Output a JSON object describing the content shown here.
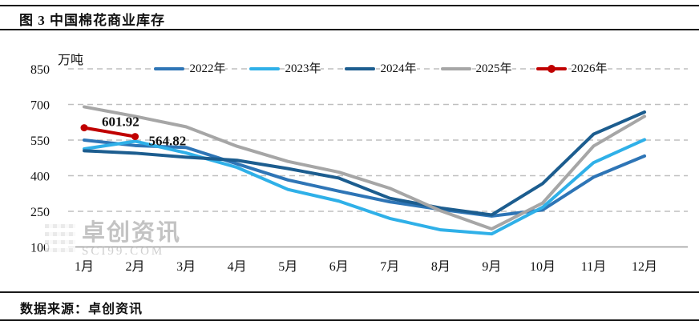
{
  "header": {
    "title": "图 3 中国棉花商业库存"
  },
  "footer": {
    "source_label": "数据来源：卓创资讯"
  },
  "watermark": {
    "brand": "卓创资讯",
    "site": "SCI99.COM",
    "icon": "qr-pixel-icon"
  },
  "chart_data": {
    "type": "line",
    "title": "中国棉花商业库存",
    "unit_label": "万吨",
    "xlabel": "",
    "ylabel": "万吨",
    "ylim": [
      100,
      850
    ],
    "y_ticks": [
      100,
      250,
      400,
      550,
      700,
      850
    ],
    "grid": "horizontal dashed",
    "legend_position": "top",
    "categories": [
      "1月",
      "2月",
      "3月",
      "4月",
      "5月",
      "6月",
      "7月",
      "8月",
      "9月",
      "10月",
      "11月",
      "12月"
    ],
    "series": [
      {
        "name": "2022年",
        "color": "#2E75B6",
        "values": [
          550,
          527,
          519,
          450,
          382,
          335,
          290,
          258,
          230,
          256,
          394,
          483
        ]
      },
      {
        "name": "2023年",
        "color": "#2FB0E8",
        "values": [
          513,
          545,
          496,
          435,
          342,
          293,
          220,
          172,
          155,
          267,
          455,
          552
        ]
      },
      {
        "name": "2024年",
        "color": "#1C5D8F",
        "values": [
          505,
          495,
          478,
          465,
          430,
          390,
          305,
          264,
          235,
          367,
          575,
          668
        ]
      },
      {
        "name": "2025年",
        "color": "#A6A6A6",
        "values": [
          690,
          650,
          606,
          524,
          460,
          415,
          347,
          252,
          176,
          285,
          525,
          650
        ]
      },
      {
        "name": "2026年",
        "color": "#C00000",
        "marker": "circle",
        "values": [
          601.92,
          564.82
        ],
        "data_labels": [
          "601.92",
          "564.82"
        ]
      }
    ],
    "colors": {
      "gridline": "#BFBFBF",
      "axis_line": "#999999",
      "text": "#111111"
    }
  }
}
